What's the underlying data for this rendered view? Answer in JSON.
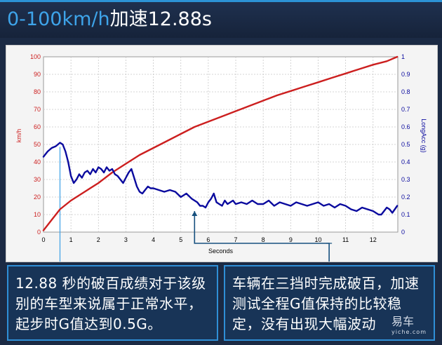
{
  "header": {
    "title_part1": "0-100km/h",
    "title_part2": "加速12.88s"
  },
  "captions": {
    "left": "12.88 秒的破百成绩对于该级别的车型来说属于正常水平，起步时G值达到0.5G。",
    "right": "车辆在三挡时完成破百，加速测试全程G值保持的比较稳定，没有出现大幅波动"
  },
  "watermark": {
    "main": "易车",
    "sub": "yiche.com"
  },
  "colors": {
    "speed_line": "#cc1f1f",
    "accel_line": "#0a0a9e",
    "callout": "#3aa0e6",
    "callout_dark": "#16507e"
  },
  "chart_data": {
    "type": "line",
    "xlabel": "Seconds",
    "xlim": [
      0,
      12.9
    ],
    "x_ticks": [
      "0",
      "1",
      "2",
      "3",
      "4",
      "5",
      "6",
      "7",
      "8",
      "9",
      "10",
      "11",
      "12"
    ],
    "y_left": {
      "label": "km/h",
      "lim": [
        0,
        100
      ],
      "ticks": [
        "0",
        "10",
        "20",
        "30",
        "40",
        "50",
        "60",
        "70",
        "80",
        "90",
        "100"
      ]
    },
    "y_right": {
      "label": "LongAcc (g)",
      "lim": [
        0,
        1
      ],
      "ticks": [
        "0",
        "0.1",
        "0.2",
        "0.3",
        "0.4",
        "0.5",
        "0.6",
        "0.7",
        "0.8",
        "0.9",
        "1"
      ]
    },
    "grid": true,
    "series": [
      {
        "axis": "left",
        "x": [
          0,
          0.3,
          0.6,
          1,
          1.5,
          2,
          2.5,
          3,
          3.5,
          4,
          4.5,
          5,
          5.5,
          6,
          6.5,
          7,
          7.5,
          8,
          8.5,
          9,
          9.5,
          10,
          10.5,
          11,
          11.5,
          12,
          12.5,
          12.88
        ],
        "values": [
          1,
          7,
          13,
          18,
          23,
          28,
          34,
          39,
          44,
          48,
          52,
          56,
          60,
          63,
          66,
          69,
          72,
          75,
          78,
          80.5,
          83,
          85.5,
          88,
          90.5,
          93,
          95.5,
          97.5,
          100
        ]
      },
      {
        "axis": "right",
        "x": [
          0,
          0.15,
          0.3,
          0.45,
          0.6,
          0.7,
          0.8,
          0.9,
          1,
          1.1,
          1.2,
          1.3,
          1.4,
          1.5,
          1.6,
          1.7,
          1.8,
          1.9,
          2,
          2.1,
          2.2,
          2.3,
          2.4,
          2.5,
          2.6,
          2.7,
          2.8,
          2.9,
          3,
          3.1,
          3.2,
          3.3,
          3.4,
          3.5,
          3.6,
          3.7,
          3.8,
          3.9,
          4,
          4.2,
          4.4,
          4.6,
          4.8,
          5,
          5.2,
          5.4,
          5.6,
          5.7,
          5.8,
          5.9,
          6,
          6.1,
          6.2,
          6.3,
          6.4,
          6.5,
          6.6,
          6.7,
          6.8,
          6.9,
          7,
          7.2,
          7.4,
          7.6,
          7.8,
          8,
          8.2,
          8.4,
          8.6,
          8.8,
          9,
          9.2,
          9.4,
          9.6,
          9.8,
          10,
          10.2,
          10.4,
          10.6,
          10.8,
          11,
          11.2,
          11.4,
          11.6,
          11.8,
          12,
          12.1,
          12.2,
          12.3,
          12.4,
          12.5,
          12.6,
          12.7,
          12.88
        ],
        "values": [
          0.43,
          0.46,
          0.48,
          0.49,
          0.51,
          0.5,
          0.46,
          0.4,
          0.32,
          0.28,
          0.3,
          0.33,
          0.31,
          0.34,
          0.35,
          0.33,
          0.36,
          0.34,
          0.37,
          0.36,
          0.34,
          0.37,
          0.35,
          0.36,
          0.33,
          0.32,
          0.3,
          0.28,
          0.31,
          0.34,
          0.36,
          0.31,
          0.26,
          0.23,
          0.22,
          0.24,
          0.26,
          0.25,
          0.25,
          0.24,
          0.23,
          0.24,
          0.23,
          0.2,
          0.22,
          0.19,
          0.17,
          0.15,
          0.15,
          0.14,
          0.17,
          0.19,
          0.22,
          0.17,
          0.16,
          0.15,
          0.18,
          0.16,
          0.17,
          0.18,
          0.16,
          0.17,
          0.16,
          0.18,
          0.16,
          0.16,
          0.18,
          0.15,
          0.17,
          0.16,
          0.15,
          0.17,
          0.16,
          0.15,
          0.16,
          0.17,
          0.15,
          0.16,
          0.14,
          0.16,
          0.15,
          0.13,
          0.12,
          0.14,
          0.13,
          0.12,
          0.11,
          0.1,
          0.1,
          0.12,
          0.14,
          0.13,
          0.11,
          0.15
        ]
      }
    ]
  }
}
